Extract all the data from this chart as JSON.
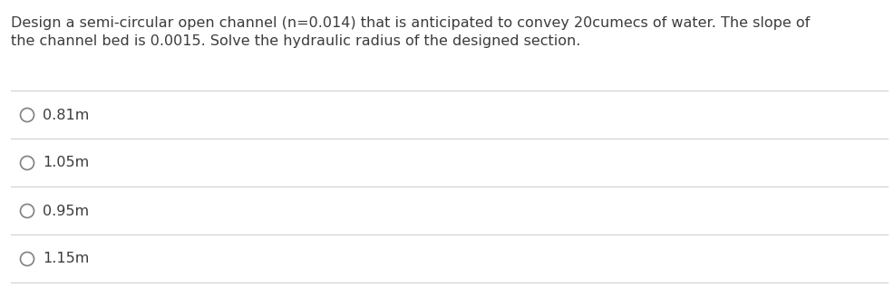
{
  "question_line1": "Design a semi-circular open channel (n=0.014) that is anticipated to convey 20cumecs of water. The slope of",
  "question_line2": "the channel bed is 0.0015. Solve the hydraulic radius of the designed section.",
  "options": [
    "0.81m",
    "1.05m",
    "0.95m",
    "1.15m"
  ],
  "background_color": "#ffffff",
  "text_color": "#3c3c3c",
  "question_fontsize": 11.5,
  "option_fontsize": 11.5,
  "divider_color": "#d0d0d0",
  "circle_color": "#808080",
  "fig_width": 9.87,
  "fig_height": 3.17,
  "dpi": 100
}
